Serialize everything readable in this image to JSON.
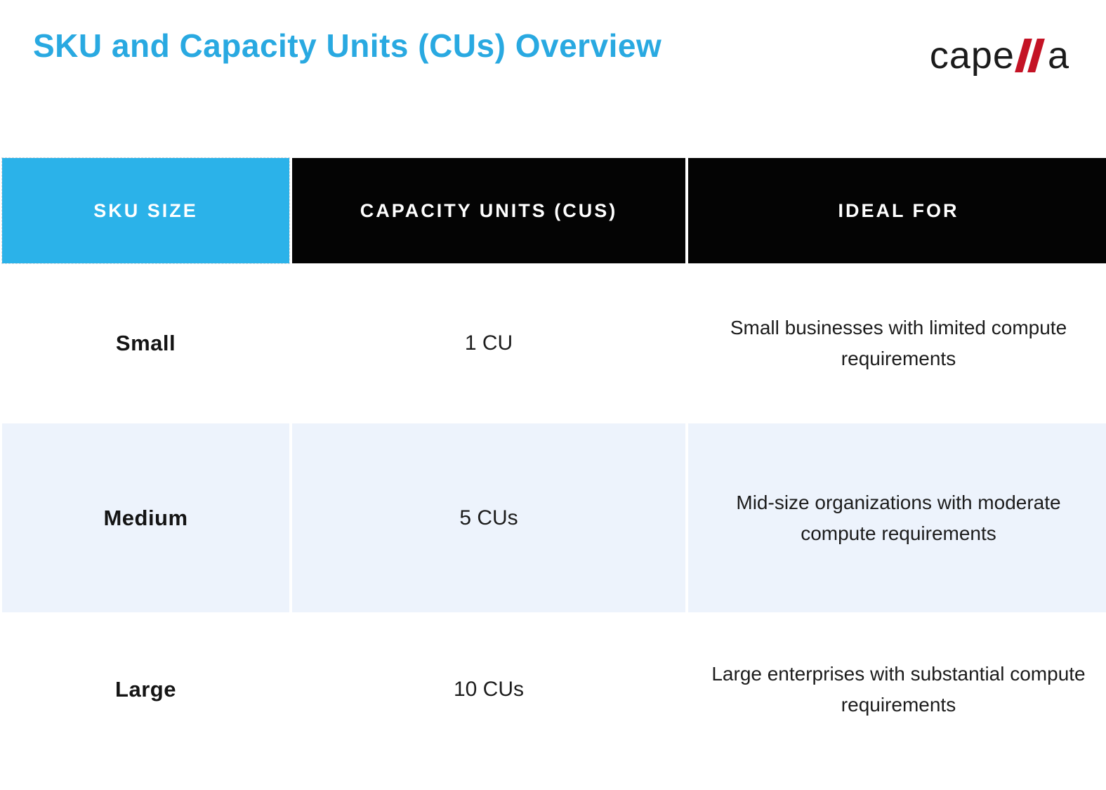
{
  "page": {
    "title": "SKU and Capacity Units (CUs) Overview"
  },
  "logo": {
    "name": "capella",
    "text_before_slashes": "cape",
    "text_after_slashes": "a",
    "slash_color": "#c41325"
  },
  "colors": {
    "title_blue": "#29a9e1",
    "header_blue": "#2bb2e9",
    "header_black": "#040404",
    "row_alt_blue": "#edf3fc"
  },
  "table": {
    "headers": [
      {
        "label": "SKU SIZE"
      },
      {
        "label": "CAPACITY UNITS (CUS)"
      },
      {
        "label": "IDEAL FOR"
      }
    ],
    "rows": [
      {
        "sku": "Small",
        "cus": "1 CU",
        "ideal": "Small businesses with limited compute requirements"
      },
      {
        "sku": "Medium",
        "cus": "5 CUs",
        "ideal": "Mid-size organizations with moderate compute requirements"
      },
      {
        "sku": "Large",
        "cus": "10 CUs",
        "ideal": "Large enterprises with substantial compute requirements"
      }
    ]
  },
  "chart_data": {
    "type": "table",
    "title": "SKU and Capacity Units (CUs) Overview",
    "columns": [
      "SKU SIZE",
      "CAPACITY UNITS (CUS)",
      "IDEAL FOR"
    ],
    "rows": [
      [
        "Small",
        "1 CU",
        "Small businesses with limited compute requirements"
      ],
      [
        "Medium",
        "5 CUs",
        "Mid-size organizations with moderate compute requirements"
      ],
      [
        "Large",
        "10 CUs",
        "Large enterprises with substantial compute requirements"
      ]
    ]
  }
}
